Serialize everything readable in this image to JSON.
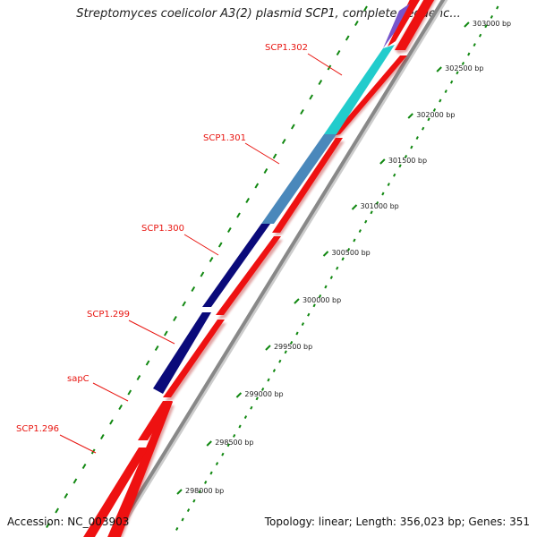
{
  "title": "Streptomyces coelicolor A3(2) plasmid SCP1, complete sequenc...",
  "footer": {
    "accession": "Accession: NC_003903",
    "stats": "Topology: linear; Length: 356,023 bp; Genes: 351"
  },
  "colors": {
    "gene_red": "#ee1111",
    "navy": "#0a0a7a",
    "steelblue": "#4a88bb",
    "cyan": "#22cccc",
    "purple": "#7755cc",
    "ruler": "#888888",
    "tick": "#118811",
    "label": "#e8140f"
  },
  "ticks": [
    {
      "label": "298000 bp"
    },
    {
      "label": "298500 bp"
    },
    {
      "label": "299000 bp"
    },
    {
      "label": "299500 bp"
    },
    {
      "label": "300000 bp"
    },
    {
      "label": "300500 bp"
    },
    {
      "label": "301000 bp"
    },
    {
      "label": "301500 bp"
    },
    {
      "label": "302000 bp"
    },
    {
      "label": "302500 bp"
    },
    {
      "label": "303000 bp"
    }
  ],
  "gene_labels": [
    {
      "name": "SCP1.302"
    },
    {
      "name": "SCP1.301"
    },
    {
      "name": "SCP1.300"
    },
    {
      "name": "SCP1.299"
    },
    {
      "name": "sapC"
    },
    {
      "name": "SCP1.296"
    }
  ]
}
